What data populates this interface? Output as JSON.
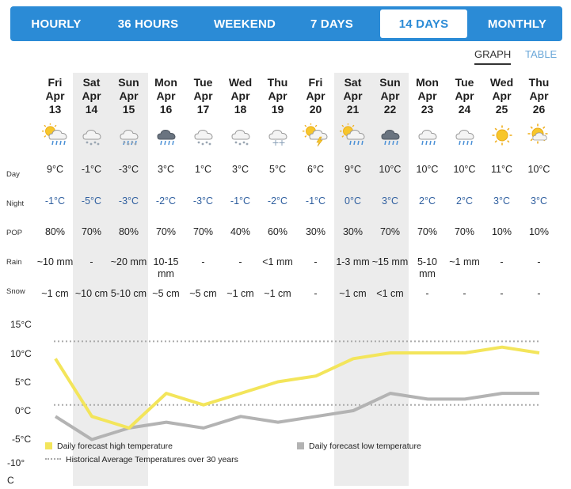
{
  "tabs": [
    {
      "label": "HOURLY",
      "active": false
    },
    {
      "label": "36 HOURS",
      "active": false
    },
    {
      "label": "WEEKEND",
      "active": false
    },
    {
      "label": "7 DAYS",
      "active": false
    },
    {
      "label": "14 DAYS",
      "active": true
    },
    {
      "label": "MONTHLY",
      "active": false
    }
  ],
  "views": {
    "graph": "GRAPH",
    "table": "TABLE"
  },
  "row_labels": {
    "day": "Day",
    "night": "Night",
    "pop": "POP",
    "rain": "Rain",
    "snow": "Snow"
  },
  "days": [
    {
      "dow": "Fri",
      "mon": "Apr",
      "date": "13",
      "icon": "sun-rain-snow-icon",
      "day": "9°C",
      "night": "-1°C",
      "pop": "80%",
      "rain": "~10 mm",
      "snow": "~1 cm",
      "weekend": false
    },
    {
      "dow": "Sat",
      "mon": "Apr",
      "date": "14",
      "icon": "snow-cloud-icon",
      "day": "-1°C",
      "night": "-5°C",
      "pop": "70%",
      "rain": "-",
      "snow": "~10 cm",
      "weekend": true
    },
    {
      "dow": "Sun",
      "mon": "Apr",
      "date": "15",
      "icon": "rain-snow-cloud-icon",
      "day": "-3°C",
      "night": "-3°C",
      "pop": "80%",
      "rain": "~20 mm",
      "snow": "5-10 cm",
      "weekend": true
    },
    {
      "dow": "Mon",
      "mon": "Apr",
      "date": "16",
      "icon": "dark-rain-cloud-icon",
      "day": "3°C",
      "night": "-2°C",
      "pop": "70%",
      "rain": "10-15 mm",
      "snow": "~5 cm",
      "weekend": false
    },
    {
      "dow": "Tue",
      "mon": "Apr",
      "date": "17",
      "icon": "snow-cloud-icon",
      "day": "1°C",
      "night": "-3°C",
      "pop": "70%",
      "rain": "-",
      "snow": "~5 cm",
      "weekend": false
    },
    {
      "dow": "Wed",
      "mon": "Apr",
      "date": "18",
      "icon": "snow-cloud-icon",
      "day": "3°C",
      "night": "-1°C",
      "pop": "40%",
      "rain": "-",
      "snow": "~1 cm",
      "weekend": false
    },
    {
      "dow": "Thu",
      "mon": "Apr",
      "date": "19",
      "icon": "snowflake-cloud-icon",
      "day": "5°C",
      "night": "-2°C",
      "pop": "60%",
      "rain": "<1 mm",
      "snow": "~1 cm",
      "weekend": false
    },
    {
      "dow": "Fri",
      "mon": "Apr",
      "date": "20",
      "icon": "sun-thunder-icon",
      "day": "6°C",
      "night": "-1°C",
      "pop": "30%",
      "rain": "-",
      "snow": "-",
      "weekend": false
    },
    {
      "dow": "Sat",
      "mon": "Apr",
      "date": "21",
      "icon": "sun-cloud-rain-icon",
      "day": "9°C",
      "night": "0°C",
      "pop": "30%",
      "rain": "1-3 mm",
      "snow": "~1 cm",
      "weekend": true
    },
    {
      "dow": "Sun",
      "mon": "Apr",
      "date": "22",
      "icon": "dark-rain-cloud-icon",
      "day": "10°C",
      "night": "3°C",
      "pop": "70%",
      "rain": "~15 mm",
      "snow": "<1 cm",
      "weekend": true
    },
    {
      "dow": "Mon",
      "mon": "Apr",
      "date": "23",
      "icon": "rain-cloud-icon",
      "day": "10°C",
      "night": "2°C",
      "pop": "70%",
      "rain": "5-10 mm",
      "snow": "-",
      "weekend": false
    },
    {
      "dow": "Tue",
      "mon": "Apr",
      "date": "24",
      "icon": "rain-cloud-icon",
      "day": "10°C",
      "night": "2°C",
      "pop": "70%",
      "rain": "~1 mm",
      "snow": "-",
      "weekend": false
    },
    {
      "dow": "Wed",
      "mon": "Apr",
      "date": "25",
      "icon": "sun-icon",
      "day": "11°C",
      "night": "3°C",
      "pop": "10%",
      "rain": "-",
      "snow": "-",
      "weekend": false
    },
    {
      "dow": "Thu",
      "mon": "Apr",
      "date": "26",
      "icon": "sun-cloud-icon",
      "day": "10°C",
      "night": "3°C",
      "pop": "10%",
      "rain": "-",
      "snow": "-",
      "weekend": false
    }
  ],
  "chart_data": {
    "type": "line",
    "categories": [
      "Fri Apr 13",
      "Sat Apr 14",
      "Sun Apr 15",
      "Mon Apr 16",
      "Tue Apr 17",
      "Wed Apr 18",
      "Thu Apr 19",
      "Fri Apr 20",
      "Sat Apr 21",
      "Sun Apr 22",
      "Mon Apr 23",
      "Tue Apr 24",
      "Wed Apr 25",
      "Thu Apr 26"
    ],
    "series": [
      {
        "name": "Daily forecast high temperature",
        "color": "#f3e55b",
        "values": [
          9,
          -1,
          -3,
          3,
          1,
          3,
          5,
          6,
          9,
          10,
          10,
          10,
          11,
          10
        ]
      },
      {
        "name": "Daily forecast low temperature",
        "color": "#b3b3b3",
        "values": [
          -1,
          -5,
          -3,
          -2,
          -3,
          -1,
          -2,
          -1,
          0,
          3,
          2,
          2,
          3,
          3
        ]
      },
      {
        "name": "Historical Average Temperatures over 30 years",
        "color": "#aaaaaa",
        "style": "dotted",
        "values_high": 12,
        "values_low": 1
      }
    ],
    "ylim": [
      -10,
      15
    ],
    "yticks": [
      "15°C",
      "10°C",
      "5°C",
      "0°C",
      "-5°C",
      "-10°C"
    ],
    "legend": [
      "Daily forecast high temperature",
      "Daily forecast low temperature",
      "Historical Average Temperatures over 30 years"
    ]
  }
}
